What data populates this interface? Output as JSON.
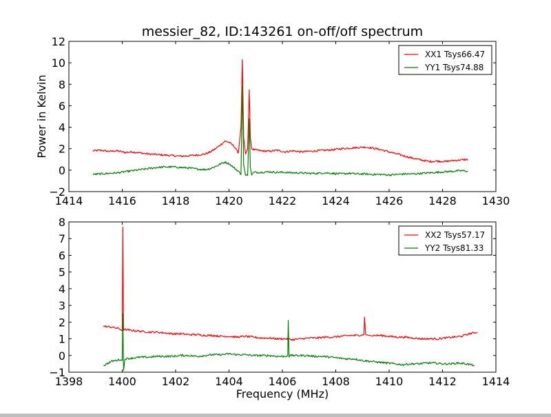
{
  "chart_data": [
    {
      "type": "line",
      "title": "messier_82, ID:143261 on-off/off spectrum",
      "xlabel": "",
      "ylabel": "Power in Kelvin",
      "xlim": [
        1414,
        1430
      ],
      "ylim": [
        -2,
        12
      ],
      "xticks": [
        "1414",
        "1416",
        "1418",
        "1420",
        "1422",
        "1424",
        "1426",
        "1428",
        "1430"
      ],
      "yticks": [
        "−2",
        "0",
        "2",
        "4",
        "6",
        "8",
        "10",
        "12"
      ],
      "grid": false,
      "legend_position": "top-right",
      "series": [
        {
          "name": "XX1 Tsys66.47",
          "color": "#ff0000",
          "x": [
            1414.9,
            1415.2,
            1415.5,
            1415.8,
            1416.1,
            1416.4,
            1416.7,
            1417.0,
            1417.3,
            1417.6,
            1417.9,
            1418.2,
            1418.5,
            1418.8,
            1419.1,
            1419.3,
            1419.5,
            1419.7,
            1419.85,
            1420.0,
            1420.2,
            1420.35,
            1420.45,
            1420.5,
            1420.55,
            1420.62,
            1420.7,
            1420.76,
            1420.8,
            1420.85,
            1420.95,
            1421.2,
            1421.5,
            1421.8,
            1422.1,
            1422.4,
            1422.7,
            1423.0,
            1423.3,
            1423.6,
            1423.9,
            1424.2,
            1424.5,
            1424.8,
            1425.1,
            1425.4,
            1425.7,
            1426.0,
            1426.3,
            1426.6,
            1426.9,
            1427.2,
            1427.5,
            1427.8,
            1428.1,
            1428.4,
            1428.7,
            1428.95
          ],
          "y": [
            1.8,
            1.85,
            1.75,
            1.8,
            1.65,
            1.7,
            1.6,
            1.5,
            1.45,
            1.4,
            1.35,
            1.3,
            1.35,
            1.4,
            1.5,
            1.7,
            2.0,
            2.4,
            2.7,
            2.6,
            2.2,
            1.6,
            4.0,
            10.3,
            3.0,
            1.5,
            2.0,
            7.5,
            3.0,
            2.0,
            1.9,
            1.8,
            1.75,
            1.85,
            1.7,
            1.8,
            1.7,
            1.75,
            1.8,
            1.85,
            1.9,
            2.0,
            2.05,
            2.1,
            2.15,
            2.05,
            1.9,
            1.7,
            1.5,
            1.3,
            1.1,
            0.95,
            0.8,
            0.85,
            0.8,
            0.9,
            0.95,
            1.0
          ]
        },
        {
          "name": "YY1 Tsys74.88",
          "color": "#008000",
          "x": [
            1414.9,
            1415.2,
            1415.5,
            1415.8,
            1416.1,
            1416.4,
            1416.7,
            1417.0,
            1417.3,
            1417.6,
            1417.9,
            1418.2,
            1418.5,
            1418.8,
            1419.1,
            1419.3,
            1419.5,
            1419.7,
            1419.85,
            1420.0,
            1420.2,
            1420.35,
            1420.45,
            1420.5,
            1420.55,
            1420.62,
            1420.7,
            1420.76,
            1420.8,
            1420.85,
            1420.95,
            1421.2,
            1421.5,
            1421.8,
            1422.1,
            1422.4,
            1422.7,
            1423.0,
            1423.3,
            1423.6,
            1423.9,
            1424.2,
            1424.5,
            1424.8,
            1425.1,
            1425.4,
            1425.7,
            1426.0,
            1426.3,
            1426.6,
            1426.9,
            1427.2,
            1427.5,
            1427.8,
            1428.1,
            1428.4,
            1428.7,
            1428.95
          ],
          "y": [
            -0.4,
            -0.35,
            -0.3,
            -0.25,
            -0.15,
            -0.05,
            0.05,
            0.15,
            0.25,
            0.3,
            0.3,
            0.25,
            0.2,
            0.1,
            0.05,
            0.15,
            0.35,
            0.6,
            0.75,
            0.6,
            0.2,
            -0.1,
            -0.4,
            7.9,
            0.5,
            -0.4,
            -0.5,
            4.8,
            0.2,
            -0.4,
            -0.2,
            -0.2,
            -0.15,
            -0.2,
            -0.2,
            -0.25,
            -0.25,
            -0.3,
            -0.3,
            -0.25,
            -0.3,
            -0.35,
            -0.3,
            -0.35,
            -0.35,
            -0.4,
            -0.4,
            -0.45,
            -0.4,
            -0.35,
            -0.35,
            -0.3,
            -0.25,
            -0.2,
            -0.15,
            -0.1,
            -0.05,
            -0.1
          ]
        }
      ]
    },
    {
      "type": "line",
      "title": "",
      "xlabel": "Frequency (MHz)",
      "ylabel": "",
      "xlim": [
        1398,
        1414
      ],
      "ylim": [
        -1,
        8
      ],
      "xticks": [
        "1398",
        "1400",
        "1402",
        "1404",
        "1406",
        "1408",
        "1410",
        "1412",
        "1414"
      ],
      "yticks": [
        "−1",
        "0",
        "1",
        "2",
        "3",
        "4",
        "5",
        "6",
        "7",
        "8"
      ],
      "grid": false,
      "legend_position": "top-right",
      "series": [
        {
          "name": "XX2 Tsys57.17",
          "color": "#ff0000",
          "x": [
            1399.3,
            1399.6,
            1399.9,
            1400.0,
            1400.02,
            1400.05,
            1400.1,
            1400.4,
            1400.7,
            1401.0,
            1401.3,
            1401.6,
            1401.9,
            1402.2,
            1402.5,
            1402.8,
            1403.1,
            1403.4,
            1403.7,
            1404.0,
            1404.3,
            1404.6,
            1404.9,
            1405.2,
            1405.5,
            1405.8,
            1406.1,
            1406.4,
            1406.7,
            1407.0,
            1407.3,
            1407.6,
            1407.9,
            1408.2,
            1408.5,
            1408.8,
            1409.05,
            1409.08,
            1409.12,
            1409.4,
            1409.7,
            1410.0,
            1410.3,
            1410.6,
            1410.9,
            1411.2,
            1411.5,
            1411.8,
            1412.1,
            1412.4,
            1412.7,
            1413.0,
            1413.3
          ],
          "y": [
            1.75,
            1.7,
            1.6,
            1.5,
            7.7,
            1.5,
            1.55,
            1.5,
            1.45,
            1.4,
            1.4,
            1.35,
            1.3,
            1.3,
            1.25,
            1.25,
            1.2,
            1.2,
            1.15,
            1.15,
            1.1,
            1.15,
            1.1,
            1.05,
            1.05,
            1.0,
            1.0,
            0.95,
            1.0,
            1.05,
            1.05,
            1.1,
            1.1,
            1.15,
            1.2,
            1.2,
            1.25,
            2.3,
            1.25,
            1.2,
            1.2,
            1.15,
            1.1,
            1.1,
            1.05,
            1.0,
            1.0,
            1.0,
            1.05,
            1.1,
            1.15,
            1.3,
            1.4
          ]
        },
        {
          "name": "YY2 Tsys81.33",
          "color": "#008000",
          "x": [
            1399.3,
            1399.6,
            1399.9,
            1400.0,
            1400.02,
            1400.05,
            1400.1,
            1400.4,
            1400.7,
            1401.0,
            1401.3,
            1401.6,
            1401.9,
            1402.2,
            1402.5,
            1402.8,
            1403.1,
            1403.4,
            1403.7,
            1404.0,
            1404.3,
            1404.6,
            1404.9,
            1405.2,
            1405.5,
            1405.8,
            1406.1,
            1406.2,
            1406.22,
            1406.25,
            1406.3,
            1406.6,
            1406.9,
            1407.2,
            1407.5,
            1407.8,
            1408.1,
            1408.4,
            1408.7,
            1409.0,
            1409.3,
            1409.6,
            1409.9,
            1410.2,
            1410.5,
            1410.8,
            1411.1,
            1411.4,
            1411.7,
            1412.0,
            1412.3,
            1412.6,
            1412.9,
            1413.2
          ],
          "y": [
            -0.6,
            -0.35,
            -0.25,
            -0.3,
            2.5,
            -0.9,
            -0.2,
            -0.15,
            -0.1,
            -0.1,
            -0.05,
            -0.05,
            -0.05,
            0.0,
            0.0,
            -0.05,
            0.0,
            0.05,
            0.05,
            0.1,
            0.05,
            0.05,
            0.0,
            0.0,
            0.0,
            -0.05,
            -0.05,
            0.0,
            2.1,
            -0.1,
            0.0,
            0.0,
            0.0,
            -0.05,
            -0.05,
            -0.1,
            -0.15,
            -0.2,
            -0.2,
            -0.3,
            -0.35,
            -0.4,
            -0.45,
            -0.5,
            -0.55,
            -0.5,
            -0.5,
            -0.45,
            -0.45,
            -0.5,
            -0.5,
            -0.45,
            -0.5,
            -0.6
          ]
        }
      ]
    }
  ]
}
